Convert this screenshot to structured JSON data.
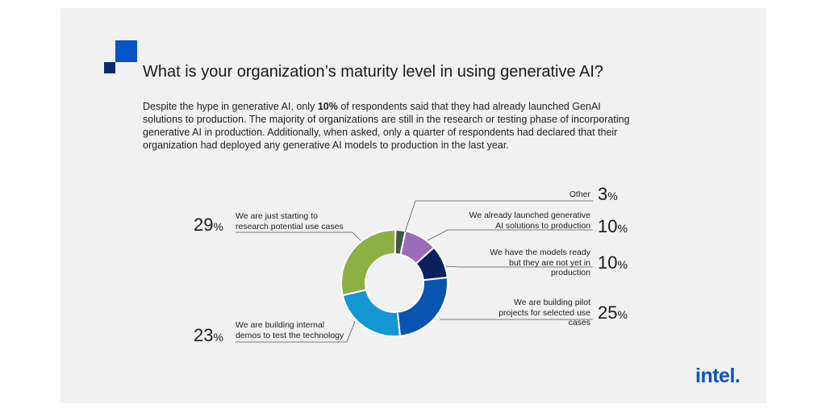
{
  "title": "What is your organization’s maturity level in using generative AI?",
  "intro": {
    "part1": "Despite the hype in generative AI, only ",
    "highlight": "10%",
    "part2": " of respondents said that they had already launched GenAI solutions to production. The majority of organizations are still in the research or testing phase of incorporating generative AI in production. Additionally, when asked, only a quarter of respondents had declared that their organization had deployed any generative AI models to production in the last year."
  },
  "logo": "intel.",
  "chart_data": {
    "type": "pie",
    "donut": true,
    "unit": "%",
    "slices": [
      {
        "label": "Other",
        "value": 3,
        "color": "#4a5240"
      },
      {
        "label": "We already launched generative AI solutions to production",
        "value": 10,
        "color": "#9b6bbb"
      },
      {
        "label": "We have the models ready but they are not yet in production",
        "value": 10,
        "color": "#0a1f5c"
      },
      {
        "label": "We are building pilot projects for selected use cases",
        "value": 25,
        "color": "#0754b0"
      },
      {
        "label": "We are building internal demos to test the technology",
        "value": 23,
        "color": "#1396d2"
      },
      {
        "label": "We are just starting to research potential use cases",
        "value": 29,
        "color": "#8db043"
      }
    ]
  }
}
